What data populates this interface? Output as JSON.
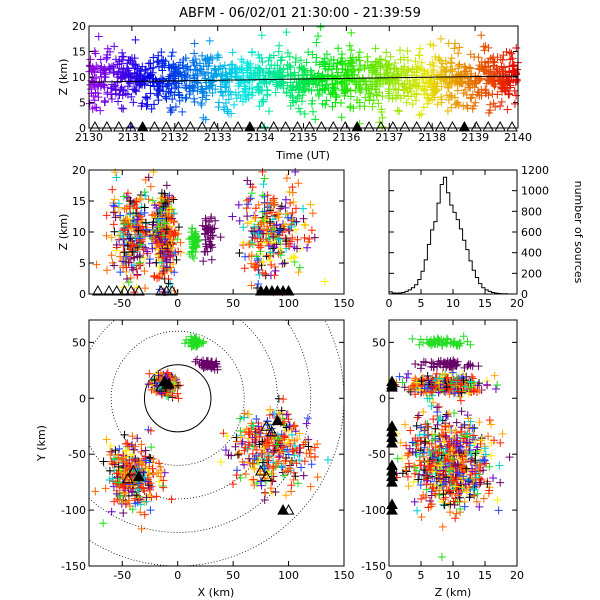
{
  "title": "ABFM - 06/02/01 21:30:00 - 21:39:59",
  "chart_data": [
    {
      "id": "time-height",
      "type": "scatter",
      "xlabel": "Time (UT)",
      "ylabel": "Z (km)",
      "xlim": [
        2130,
        2140
      ],
      "ylim": [
        0,
        20
      ],
      "xticks": [
        "2130",
        "2131",
        "2132",
        "2133",
        "2134",
        "2135",
        "2136",
        "2137",
        "2138",
        "2139",
        "2140"
      ],
      "yticks": [
        "0",
        "5",
        "10",
        "15",
        "20"
      ],
      "color_encoding": "time (rainbow: purple to red)",
      "trend_line": {
        "x": [
          2130,
          2140
        ],
        "y": [
          9.0,
          10.2
        ]
      },
      "station_markers_z": 0
    },
    {
      "id": "x-z",
      "type": "scatter",
      "xlabel": "",
      "ylabel": "Z (km)",
      "xlim": [
        -80,
        150
      ],
      "ylim": [
        0,
        20
      ],
      "xticks": [
        "-50",
        "0",
        "50",
        "100",
        "150"
      ],
      "yticks": [
        "0",
        "5",
        "10",
        "15",
        "20"
      ],
      "clusters": [
        {
          "x": -40,
          "z": 10,
          "sx": 10,
          "sz": 3.5,
          "main": "red"
        },
        {
          "x": -12,
          "z": 9,
          "sx": 5,
          "sz": 3.5,
          "main": "red"
        },
        {
          "x": 15,
          "z": 8.5,
          "sx": 2,
          "sz": 1.2,
          "main": "green"
        },
        {
          "x": 28,
          "z": 9,
          "sx": 3,
          "sz": 2,
          "main": "purple"
        },
        {
          "x": 85,
          "z": 10,
          "sx": 15,
          "sz": 3.5,
          "main": "red"
        }
      ]
    },
    {
      "id": "histogram",
      "type": "bar",
      "xlabel": "",
      "ylabel": "number of sources",
      "xlim": [
        0,
        20
      ],
      "ylim": [
        0,
        1200
      ],
      "xticks": [
        "0",
        "5",
        "10",
        "15",
        "20"
      ],
      "yticks": [
        "0",
        "200",
        "400",
        "600",
        "800",
        "1000",
        "1200"
      ],
      "bin_edges": [
        0,
        0.5,
        1,
        1.5,
        2,
        2.5,
        3,
        3.5,
        4,
        4.5,
        5,
        5.5,
        6,
        6.5,
        7,
        7.5,
        8,
        8.5,
        9,
        9.5,
        10,
        10.5,
        11,
        11.5,
        12,
        12.5,
        13,
        13.5,
        14,
        14.5,
        15,
        15.5,
        16,
        16.5,
        17,
        17.5,
        18,
        18.5,
        19,
        19.5,
        20
      ],
      "counts": [
        20,
        10,
        8,
        10,
        15,
        25,
        40,
        60,
        90,
        140,
        220,
        330,
        480,
        620,
        700,
        880,
        1060,
        1130,
        980,
        860,
        790,
        720,
        630,
        520,
        430,
        320,
        230,
        160,
        100,
        60,
        40,
        25,
        15,
        8,
        5,
        3,
        2,
        0,
        0,
        0
      ]
    },
    {
      "id": "plan-view",
      "type": "scatter",
      "xlabel": "X (km)",
      "ylabel": "Y (km)",
      "xlim": [
        -80,
        150
      ],
      "ylim": [
        -150,
        70
      ],
      "xticks": [
        "-50",
        "0",
        "50",
        "100",
        "150"
      ],
      "yticks": [
        "-150",
        "-100",
        "-50",
        "0",
        "50"
      ],
      "range_rings_km": [
        30,
        60,
        90,
        120,
        150
      ],
      "clusters": [
        {
          "x": -40,
          "y": -70,
          "sx": 12,
          "sy": 15,
          "main": "red"
        },
        {
          "x": -12,
          "y": 12,
          "sx": 5,
          "sy": 4,
          "main": "red"
        },
        {
          "x": 15,
          "y": 50,
          "sx": 3,
          "sy": 2,
          "main": "green"
        },
        {
          "x": 28,
          "y": 30,
          "sx": 5,
          "sy": 2,
          "main": "purple"
        },
        {
          "x": 85,
          "y": -45,
          "sx": 18,
          "sy": 18,
          "main": "red"
        }
      ],
      "stations": [
        [
          -12,
          15
        ],
        [
          -10,
          12
        ],
        [
          -15,
          10
        ],
        [
          -8,
          13
        ],
        [
          -40,
          -65
        ],
        [
          -45,
          -72
        ],
        [
          -35,
          -70
        ],
        [
          80,
          -25
        ],
        [
          85,
          -30
        ],
        [
          90,
          -20
        ],
        [
          75,
          -65
        ],
        [
          80,
          -70
        ],
        [
          95,
          -100
        ],
        [
          100,
          -100
        ]
      ]
    },
    {
      "id": "z-y",
      "type": "scatter",
      "xlabel": "Z (km)",
      "ylabel": "",
      "xlim": [
        0,
        20
      ],
      "ylim": [
        -150,
        70
      ],
      "xticks": [
        "0",
        "5",
        "10",
        "15",
        "20"
      ],
      "yticks": [
        "-150",
        "-100",
        "-50",
        "0",
        "50"
      ],
      "clusters": [
        {
          "z": 10,
          "y": -70,
          "sz": 3,
          "sy": 15,
          "main": "red"
        },
        {
          "z": 9,
          "y": 12,
          "sz": 3,
          "sy": 4,
          "main": "red"
        },
        {
          "z": 8.5,
          "y": 50,
          "sz": 2,
          "sy": 2,
          "main": "green"
        },
        {
          "z": 9,
          "y": 30,
          "sz": 2,
          "sy": 2,
          "main": "purple"
        },
        {
          "z": 9,
          "y": -45,
          "sz": 3.5,
          "sy": 18,
          "main": "red"
        }
      ]
    }
  ]
}
